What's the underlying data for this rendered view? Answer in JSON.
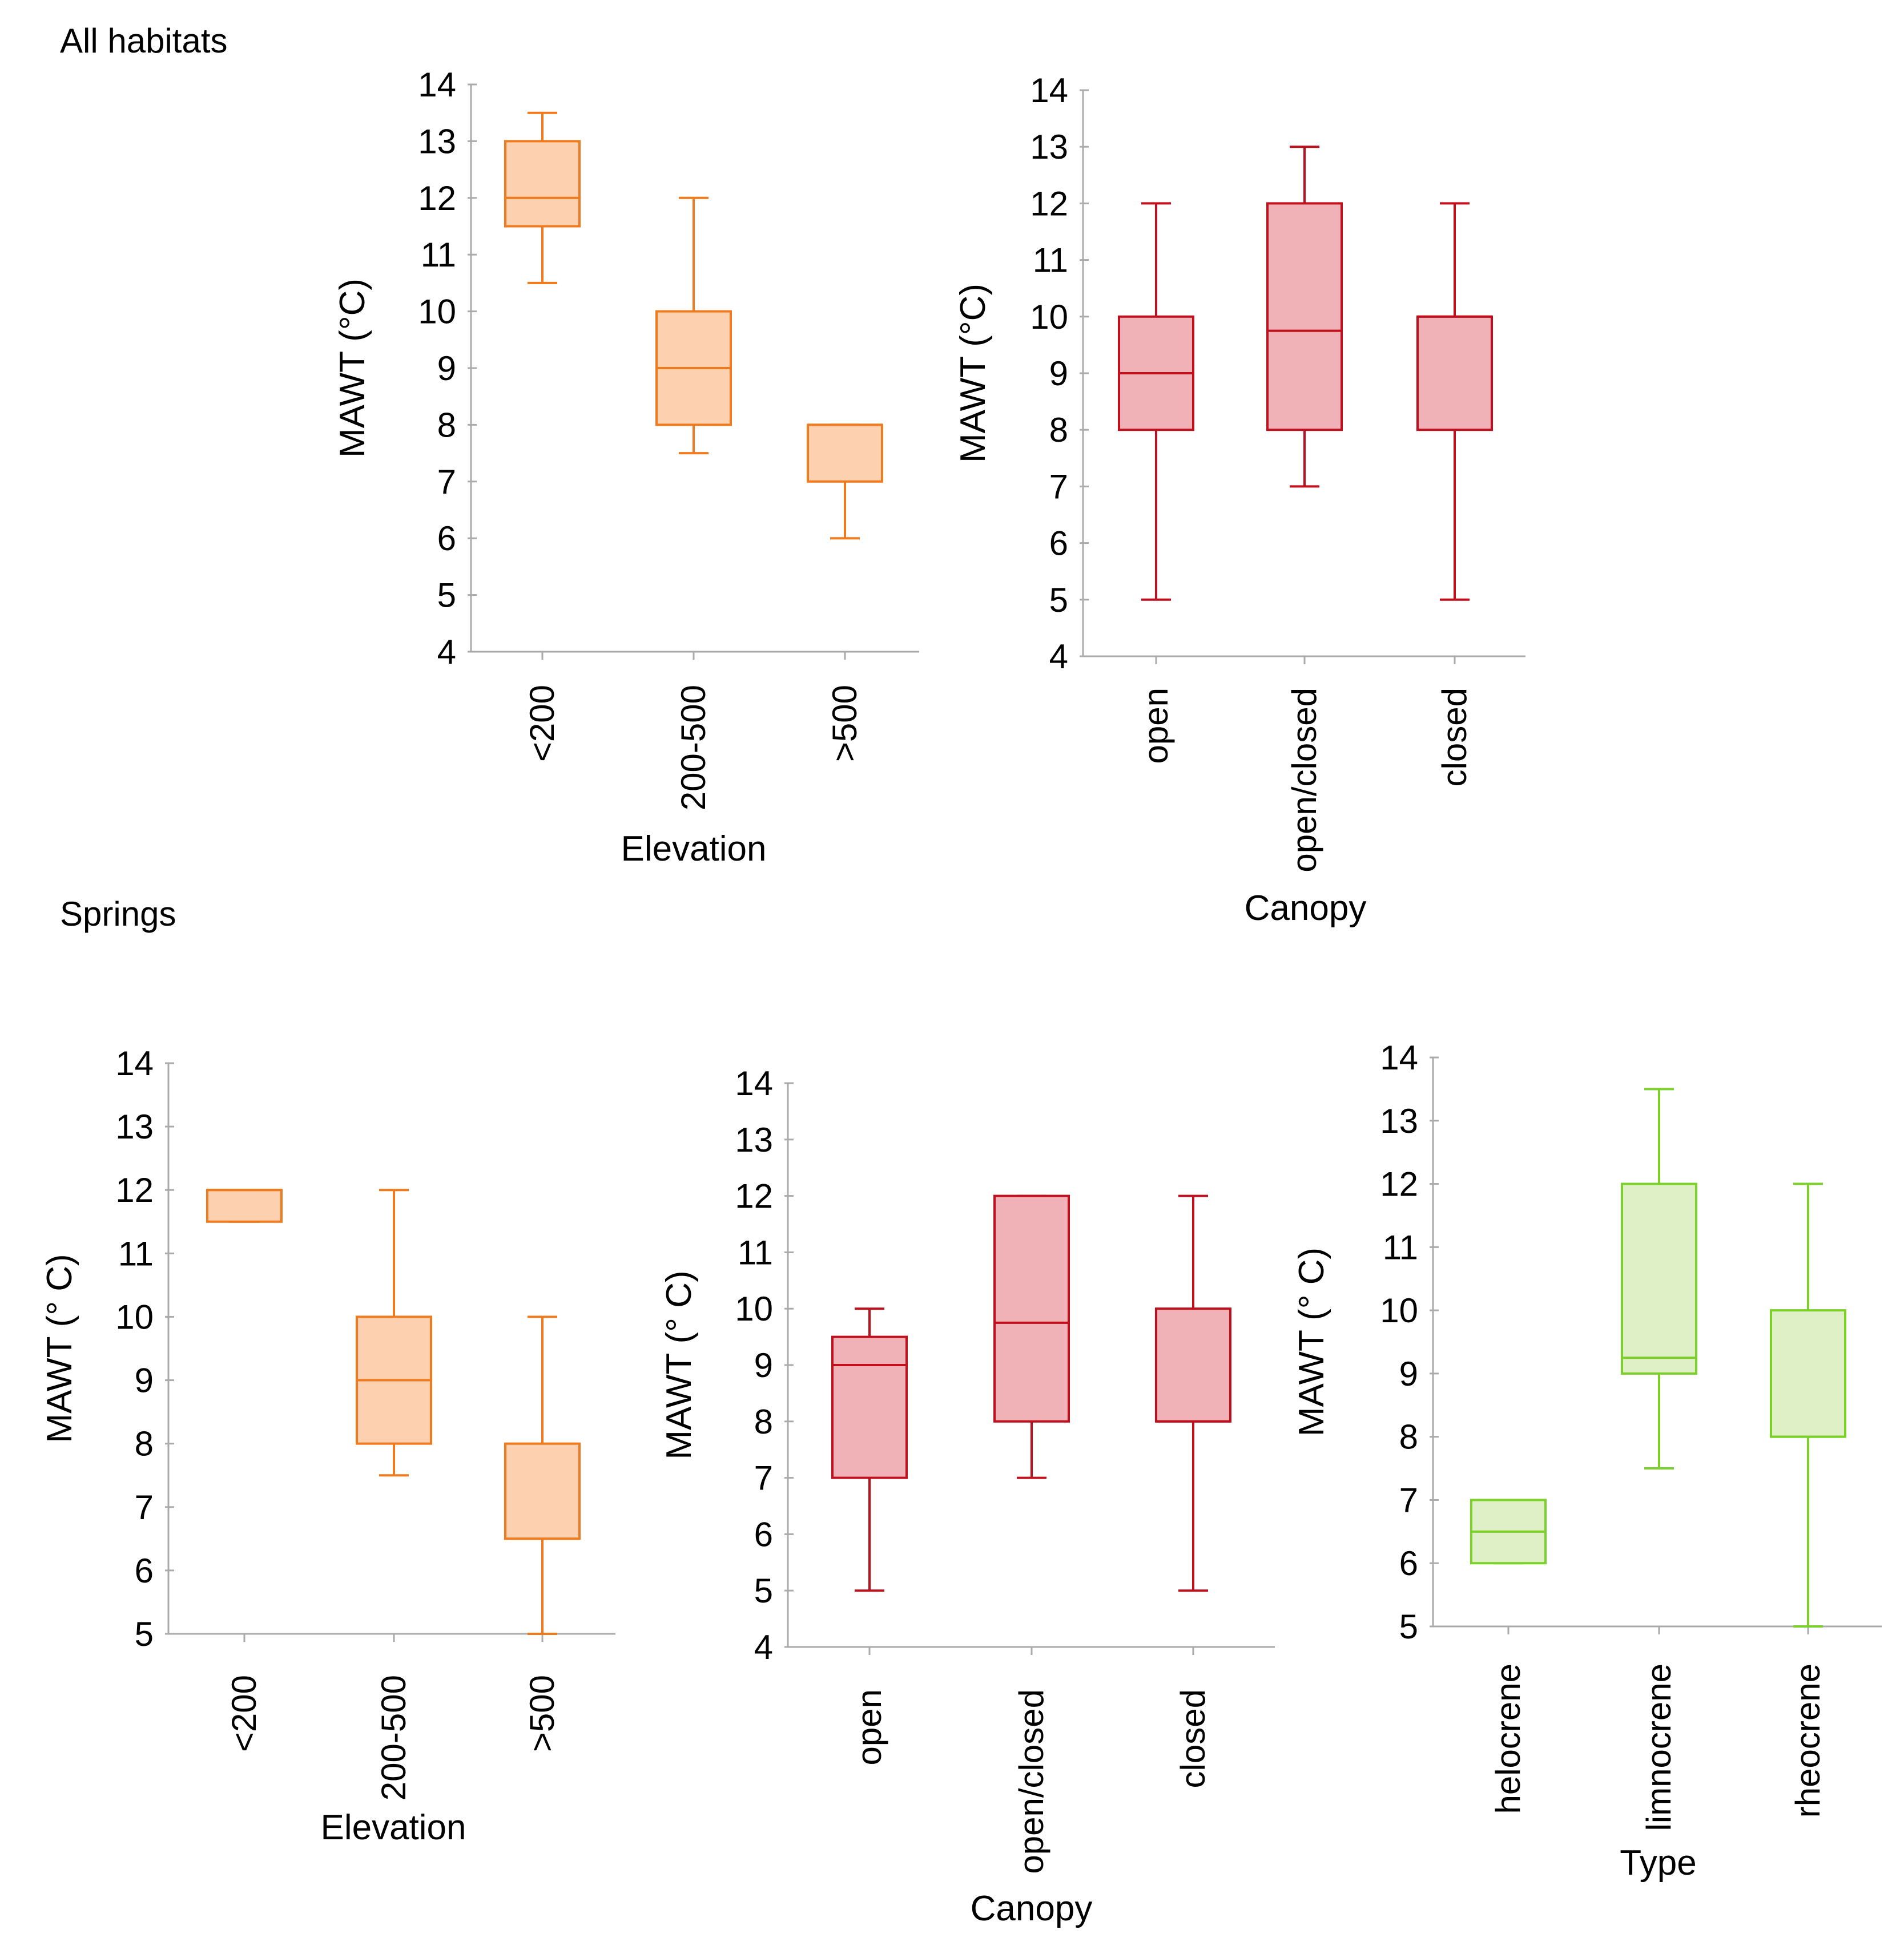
{
  "sections": [
    {
      "title": "All habitats"
    },
    {
      "title": "Springs"
    }
  ],
  "colors": {
    "elevation_stroke": "#f07a1e",
    "elevation_fill": "#fdd0b0",
    "canopy_stroke": "#c0101e",
    "canopy_fill": "#f0b2b6",
    "type_stroke": "#7cd02a",
    "type_fill": "#dff0c6",
    "axis": "#aaaaaa",
    "text": "#000000"
  },
  "chart_data": [
    {
      "type": "boxplot",
      "section": "All habitats",
      "color_key": "elevation",
      "ylabel": "MAWT (°C)",
      "xlabel": "Elevation",
      "ylim": [
        4,
        14
      ],
      "yticks": [
        4,
        5,
        6,
        7,
        8,
        9,
        10,
        11,
        12,
        13,
        14
      ],
      "categories": [
        "<200",
        "200-500",
        ">500"
      ],
      "boxes": [
        {
          "min": 10.5,
          "q1": 11.5,
          "median": 12,
          "q3": 13,
          "max": 13.5
        },
        {
          "min": 7.5,
          "q1": 8,
          "median": 9,
          "q3": 10,
          "max": 12
        },
        {
          "min": 6,
          "q1": 7,
          "median": 8,
          "q3": 8,
          "max": 8
        }
      ]
    },
    {
      "type": "boxplot",
      "section": "All habitats",
      "color_key": "canopy",
      "ylabel": "MAWT (°C)",
      "xlabel": "Canopy",
      "ylim": [
        4,
        14
      ],
      "yticks": [
        4,
        5,
        6,
        7,
        8,
        9,
        10,
        11,
        12,
        13,
        14
      ],
      "categories": [
        "open",
        "open/closed",
        "closed"
      ],
      "boxes": [
        {
          "min": 5,
          "q1": 8,
          "median": 9,
          "q3": 10,
          "max": 12
        },
        {
          "min": 7,
          "q1": 8,
          "median": 9.75,
          "q3": 12,
          "max": 13
        },
        {
          "min": 5,
          "q1": 8,
          "median": 10,
          "q3": 10,
          "max": 12
        }
      ]
    },
    {
      "type": "boxplot",
      "section": "Springs",
      "color_key": "elevation",
      "ylabel": "MAWT (° C)",
      "xlabel": "Elevation",
      "ylim": [
        5,
        14
      ],
      "yticks": [
        5,
        6,
        7,
        8,
        9,
        10,
        11,
        12,
        13,
        14
      ],
      "categories": [
        "<200",
        "200-500",
        ">500"
      ],
      "boxes": [
        {
          "min": 11.5,
          "q1": 11.5,
          "median": 12,
          "q3": 12,
          "max": 12
        },
        {
          "min": 7.5,
          "q1": 8,
          "median": 9,
          "q3": 10,
          "max": 12
        },
        {
          "min": 5,
          "q1": 6.5,
          "median": 6.5,
          "q3": 8,
          "max": 10
        }
      ]
    },
    {
      "type": "boxplot",
      "section": "Springs",
      "color_key": "canopy",
      "ylabel": "MAWT (° C)",
      "xlabel": "Canopy",
      "ylim": [
        4,
        14
      ],
      "yticks": [
        4,
        5,
        6,
        7,
        8,
        9,
        10,
        11,
        12,
        13,
        14
      ],
      "categories": [
        "open",
        "open/closed",
        "closed"
      ],
      "boxes": [
        {
          "min": 5,
          "q1": 7,
          "median": 9,
          "q3": 9.5,
          "max": 10
        },
        {
          "min": 7,
          "q1": 8,
          "median": 9.75,
          "q3": 12,
          "max": 12
        },
        {
          "min": 5,
          "q1": 8,
          "median": 8,
          "q3": 10,
          "max": 12
        }
      ]
    },
    {
      "type": "boxplot",
      "section": "Springs",
      "color_key": "type",
      "ylabel": "MAWT (° C)",
      "xlabel": "Type",
      "ylim": [
        5,
        14
      ],
      "yticks": [
        5,
        6,
        7,
        8,
        9,
        10,
        11,
        12,
        13,
        14
      ],
      "categories": [
        "helocrene",
        "limnocrene",
        "rheocrene"
      ],
      "boxes": [
        {
          "min": 6,
          "q1": 6,
          "median": 6.5,
          "q3": 7,
          "max": 7
        },
        {
          "min": 7.5,
          "q1": 9,
          "median": 9.25,
          "q3": 12,
          "max": 13.5
        },
        {
          "min": 5,
          "q1": 8,
          "median": 8,
          "q3": 10,
          "max": 12
        }
      ]
    }
  ]
}
